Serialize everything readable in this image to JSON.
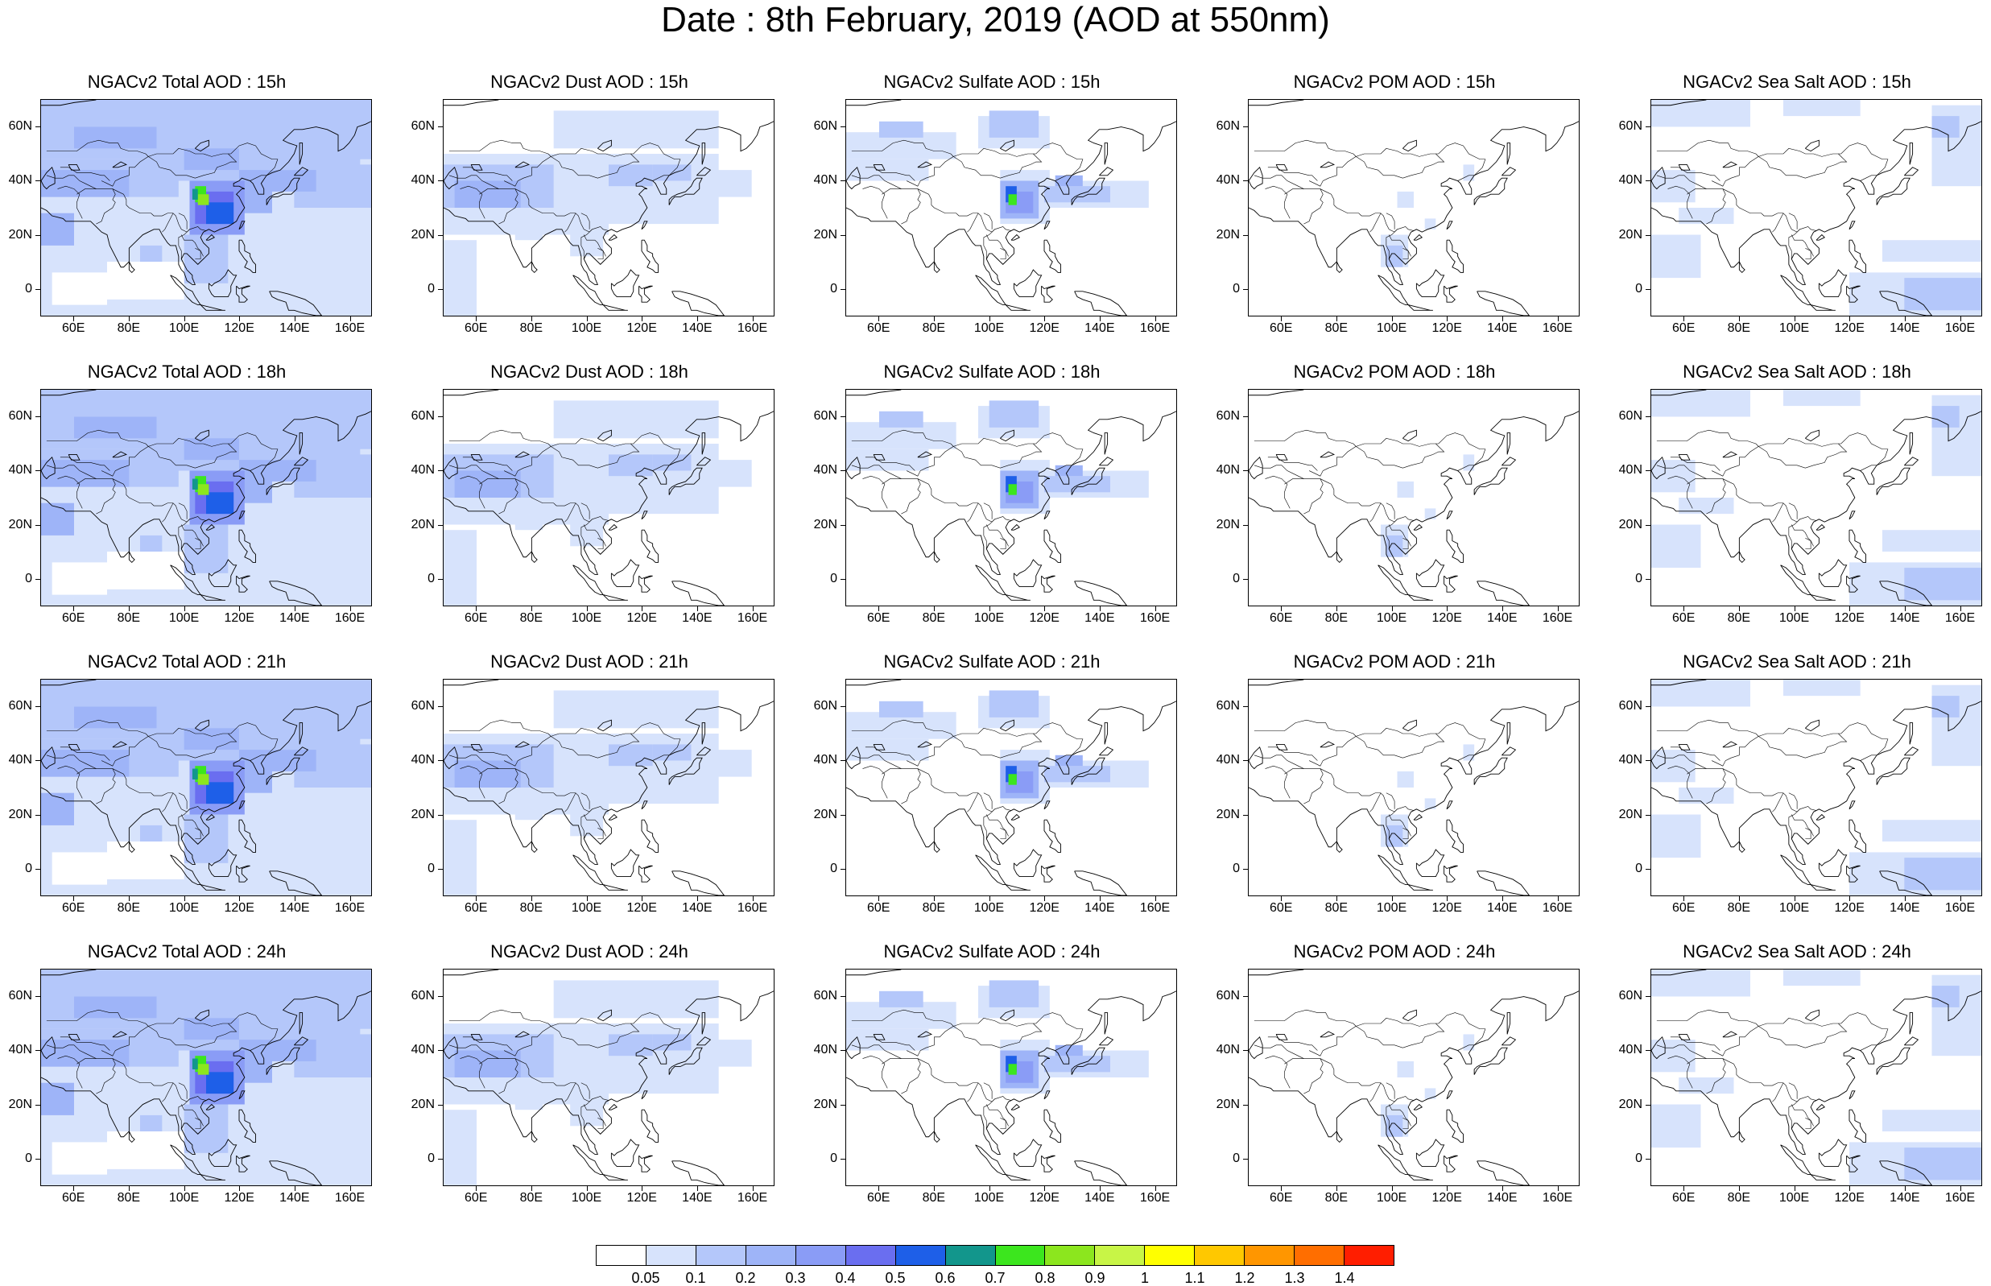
{
  "figure_title": "Date : 8th February, 2019 (AOD at 550nm)",
  "panels": [
    {
      "title": "NGACv2 Total AOD : 15h",
      "species": "total"
    },
    {
      "title": "NGACv2 Dust AOD : 15h",
      "species": "dust"
    },
    {
      "title": "NGACv2 Sulfate AOD : 15h",
      "species": "sulfate"
    },
    {
      "title": "NGACv2 POM AOD : 15h",
      "species": "pom"
    },
    {
      "title": "NGACv2 Sea Salt AOD : 15h",
      "species": "seasalt"
    },
    {
      "title": "NGACv2 Total AOD : 18h",
      "species": "total"
    },
    {
      "title": "NGACv2 Dust AOD : 18h",
      "species": "dust"
    },
    {
      "title": "NGACv2 Sulfate AOD : 18h",
      "species": "sulfate"
    },
    {
      "title": "NGACv2 POM AOD : 18h",
      "species": "pom"
    },
    {
      "title": "NGACv2 Sea Salt AOD : 18h",
      "species": "seasalt"
    },
    {
      "title": "NGACv2 Total AOD : 21h",
      "species": "total"
    },
    {
      "title": "NGACv2 Dust AOD : 21h",
      "species": "dust"
    },
    {
      "title": "NGACv2 Sulfate AOD : 21h",
      "species": "sulfate"
    },
    {
      "title": "NGACv2 POM AOD : 21h",
      "species": "pom"
    },
    {
      "title": "NGACv2 Sea Salt AOD : 21h",
      "species": "seasalt"
    },
    {
      "title": "NGACv2 Total AOD : 24h",
      "species": "total"
    },
    {
      "title": "NGACv2 Dust AOD : 24h",
      "species": "dust"
    },
    {
      "title": "NGACv2 Sulfate AOD : 24h",
      "species": "sulfate"
    },
    {
      "title": "NGACv2 POM AOD : 24h",
      "species": "pom"
    },
    {
      "title": "NGACv2 Sea Salt  AOD : 24h",
      "species": "seasalt"
    }
  ],
  "lat_ticks": [
    "60N",
    "40N",
    "20N",
    "0"
  ],
  "lon_ticks": [
    "60E",
    "80E",
    "100E",
    "120E",
    "140E",
    "160E"
  ],
  "colorbar": {
    "colors": [
      "#ffffff",
      "#d7e3fc",
      "#b4c7fa",
      "#9eb4f8",
      "#8a9cf6",
      "#6a6ef0",
      "#1e5fe8",
      "#12968c",
      "#3ce61e",
      "#8ce61e",
      "#c8f546",
      "#ffff00",
      "#ffc800",
      "#ff9600",
      "#ff6e00",
      "#ff1e00"
    ],
    "labels": [
      "0.05",
      "0.1",
      "0.2",
      "0.3",
      "0.4",
      "0.5",
      "0.6",
      "0.7",
      "0.8",
      "0.9",
      "1",
      "1.1",
      "1.2",
      "1.3",
      "1.4"
    ]
  }
}
